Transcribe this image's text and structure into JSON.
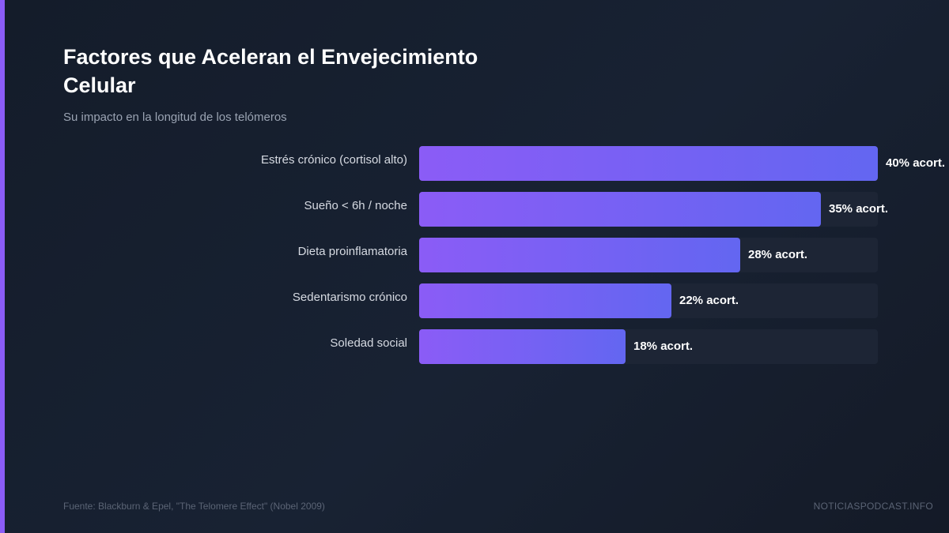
{
  "title": "Factores que Aceleran el Envejecimiento Celular",
  "subtitle": "Su impacto en la longitud de los telómeros",
  "source": "Fuente: Blackburn & Epel, \"The Telomere Effect\" (Nobel 2009)",
  "brand": "NOTICIASPODCAST.INFO",
  "colors": {
    "background": "#161e2d",
    "accent": "#8b5cf6",
    "bar_start": "#8b5cf6",
    "bar_end": "#6366f1",
    "track": "#1d2535"
  },
  "chart_data": {
    "type": "bar",
    "orientation": "horizontal",
    "categories": [
      "Estrés crónico (cortisol alto)",
      "Sueño < 6h / noche",
      "Dieta proinflamatoria",
      "Sedentarismo crónico",
      "Soledad social"
    ],
    "values": [
      40,
      35,
      28,
      22,
      18
    ],
    "value_labels": [
      "40% acort.",
      "35% acort.",
      "28% acort.",
      "22% acort.",
      "18% acort."
    ],
    "xlim": [
      0,
      40
    ],
    "unit": "%",
    "grid": false,
    "legend": "none"
  }
}
